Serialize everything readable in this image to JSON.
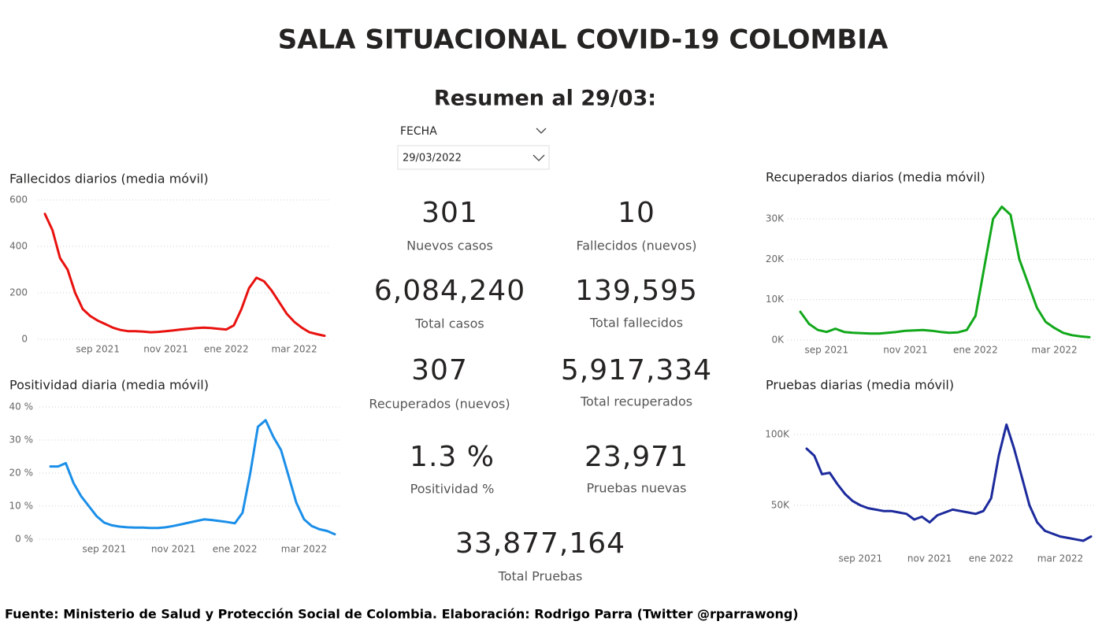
{
  "header": {
    "title": "SALA SITUACIONAL COVID-19 COLOMBIA",
    "subtitle": "Resumen al 29/03:"
  },
  "filter": {
    "label": "FECHA",
    "value": "29/03/2022"
  },
  "kpis": [
    {
      "value": "301",
      "label": "Nuevos casos"
    },
    {
      "value": "10",
      "label": "Fallecidos (nuevos)"
    },
    {
      "value": "6,084,240",
      "label": "Total casos"
    },
    {
      "value": "139,595",
      "label": "Total fallecidos"
    },
    {
      "value": "307",
      "label": "Recuperados (nuevos)"
    },
    {
      "value": "5,917,334",
      "label": "Total recuperados"
    },
    {
      "value": "1.3 %",
      "label": "Positividad %"
    },
    {
      "value": "23,971",
      "label": "Pruebas nuevas"
    },
    {
      "value": "33,877,164",
      "label": "Total Pruebas"
    }
  ],
  "chart_data": [
    {
      "type": "line",
      "title": "Fallecidos diarios (media móvil)",
      "color": "#e8120f",
      "grid": true,
      "categories": [
        null,
        null,
        null,
        null,
        null,
        null,
        null,
        "sep 2021",
        null,
        null,
        null,
        null,
        null,
        null,
        null,
        null,
        "nov 2021",
        null,
        null,
        null,
        null,
        null,
        null,
        null,
        "ene 2022",
        null,
        null,
        null,
        null,
        null,
        null,
        null,
        null,
        "mar 2022",
        null,
        null,
        null,
        null
      ],
      "values": [
        540,
        470,
        350,
        300,
        200,
        130,
        100,
        80,
        65,
        50,
        40,
        35,
        35,
        33,
        30,
        32,
        35,
        38,
        42,
        45,
        48,
        50,
        48,
        45,
        42,
        60,
        130,
        220,
        265,
        250,
        210,
        160,
        110,
        75,
        50,
        30,
        22,
        15
      ],
      "ylim": [
        0,
        600
      ],
      "yticks": [
        0,
        200,
        400,
        600
      ]
    },
    {
      "type": "line",
      "title": "Positividad diaria (media móvil)",
      "color": "#1b8fe8",
      "grid": true,
      "categories": [
        null,
        null,
        null,
        null,
        null,
        null,
        null,
        "sep 2021",
        null,
        null,
        null,
        null,
        null,
        null,
        null,
        null,
        "nov 2021",
        null,
        null,
        null,
        null,
        null,
        null,
        null,
        "ene 2022",
        null,
        null,
        null,
        null,
        null,
        null,
        null,
        null,
        "mar 2022",
        null,
        null,
        null,
        null
      ],
      "values": [
        22,
        22,
        23,
        17,
        13,
        10,
        7,
        5,
        4.2,
        3.8,
        3.6,
        3.5,
        3.5,
        3.4,
        3.4,
        3.6,
        4,
        4.5,
        5,
        5.5,
        6,
        5.8,
        5.5,
        5.2,
        4.8,
        8,
        20,
        34,
        36,
        31,
        27,
        19,
        11,
        6,
        4,
        3,
        2.5,
        1.5
      ],
      "ylim": [
        0,
        40
      ],
      "yticks": [
        {
          "value": 0,
          "label": "0 %"
        },
        {
          "value": 10,
          "label": "10 %"
        },
        {
          "value": 20,
          "label": "20 %"
        },
        {
          "value": 30,
          "label": "30 %"
        },
        {
          "value": 40,
          "label": "40 %"
        }
      ]
    },
    {
      "type": "line",
      "title": "Recuperados diarios (media móvil)",
      "color": "#12a81b",
      "grid": true,
      "categories": [
        null,
        null,
        null,
        "sep 2021",
        null,
        null,
        null,
        null,
        null,
        null,
        null,
        null,
        "nov 2021",
        null,
        null,
        null,
        null,
        null,
        null,
        null,
        "ene 2022",
        null,
        null,
        null,
        null,
        null,
        null,
        null,
        null,
        "mar 2022",
        null,
        null,
        null,
        null
      ],
      "values": [
        7000,
        4000,
        2500,
        2000,
        2800,
        2000,
        1800,
        1700,
        1600,
        1600,
        1800,
        2000,
        2300,
        2400,
        2500,
        2300,
        2000,
        1800,
        1900,
        2500,
        6000,
        18000,
        30000,
        33000,
        31000,
        20000,
        14000,
        8000,
        4500,
        3000,
        1800,
        1200,
        900,
        700
      ],
      "ylim": [
        0,
        33000
      ],
      "yticks": [
        {
          "value": 0,
          "label": "0K"
        },
        {
          "value": 10000,
          "label": "10K"
        },
        {
          "value": 20000,
          "label": "20K"
        },
        {
          "value": 30000,
          "label": "30K"
        }
      ]
    },
    {
      "type": "line",
      "title": "Pruebas diarias (media móvil)",
      "color": "#1c2a9c",
      "grid": true,
      "categories": [
        null,
        null,
        null,
        null,
        null,
        null,
        null,
        "sep 2021",
        null,
        null,
        null,
        null,
        null,
        null,
        null,
        null,
        "nov 2021",
        null,
        null,
        null,
        null,
        null,
        null,
        null,
        "ene 2022",
        null,
        null,
        null,
        null,
        null,
        null,
        null,
        null,
        "mar 2022",
        null,
        null,
        null,
        null
      ],
      "values": [
        90000,
        85000,
        72000,
        73000,
        65000,
        58000,
        53000,
        50000,
        48000,
        47000,
        46000,
        46000,
        45000,
        44000,
        40000,
        42000,
        38000,
        43000,
        45000,
        47000,
        46000,
        45000,
        44000,
        46000,
        55000,
        85000,
        107000,
        90000,
        70000,
        50000,
        38000,
        32000,
        30000,
        28000,
        27000,
        26000,
        25000,
        28000
      ],
      "ylim": [
        20000,
        110000
      ],
      "yticks": [
        {
          "value": 50000,
          "label": "50K"
        },
        {
          "value": 100000,
          "label": "100K"
        }
      ]
    }
  ],
  "footer": "Fuente: Ministerio de Salud y Protección Social de Colombia. Elaboración: Rodrigo Parra (Twitter @rparrawong)"
}
